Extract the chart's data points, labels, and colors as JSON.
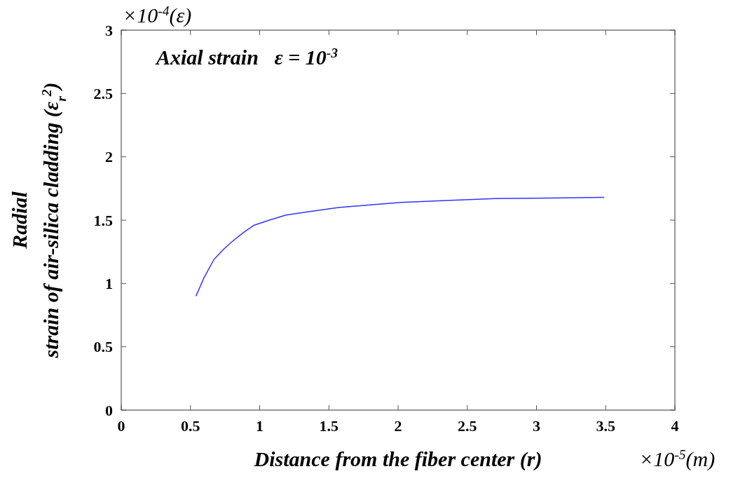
{
  "chart_data": {
    "type": "line",
    "xlabel": "Distance from the fiber center (r)",
    "ylabel": "Radial\nstrain of air-silica cladding (ε$_{r}$$^{2}$)",
    "annotations": [
      "Axial strain   ε = 10$^{-3}$",
      "×10$^{-4}$(ε)",
      "×10$^{-5}$(m)"
    ],
    "xlim": [
      0,
      4
    ],
    "xticks": [
      0,
      0.5,
      1,
      1.5,
      2,
      2.5,
      3,
      3.5,
      4
    ],
    "ylim": [
      0,
      3
    ],
    "yticks": [
      0,
      0.5,
      1,
      1.5,
      2,
      2.5,
      3
    ],
    "grid": false,
    "line_style": "solid",
    "marker": "none",
    "series": [
      {
        "color": "#3333ff",
        "x": [
          0.54,
          0.6,
          0.67,
          0.74,
          0.8,
          0.88,
          0.96,
          1.07,
          1.19,
          1.38,
          1.57,
          1.8,
          2.02,
          2.35,
          2.7,
          3.1,
          3.49
        ],
        "values": [
          0.9,
          1.05,
          1.19,
          1.27,
          1.33,
          1.4,
          1.46,
          1.5,
          1.54,
          1.57,
          1.6,
          1.62,
          1.64,
          1.655,
          1.67,
          1.675,
          1.68
        ]
      }
    ]
  }
}
